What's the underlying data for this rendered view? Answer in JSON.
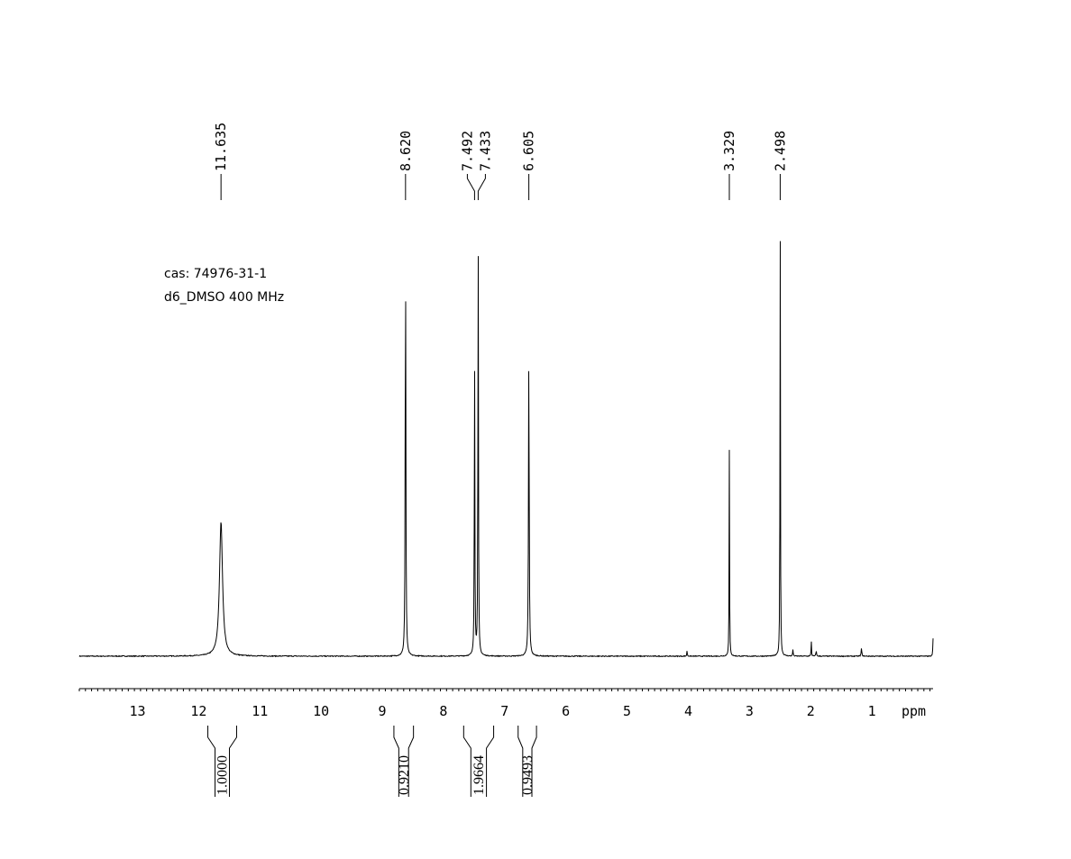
{
  "sample": {
    "cas_line": "cas: 74976-31-1",
    "solvent_line": "d6_DMSO 400 MHz"
  },
  "chart_data": {
    "type": "line",
    "title": "",
    "xlabel": "ppm",
    "xlim": [
      13.95,
      0.0
    ],
    "x_reversed": true,
    "major_ticks": [
      13,
      12,
      11,
      10,
      9,
      8,
      7,
      6,
      5,
      4,
      3,
      2,
      1
    ],
    "minor_tick_step": 0.1,
    "ylim": [
      0,
      1.0
    ],
    "baseline": 0.0,
    "peaks": [
      {
        "ppm": 11.635,
        "height": 0.3,
        "width": 0.06
      },
      {
        "ppm": 8.62,
        "height": 0.93,
        "width": 0.012
      },
      {
        "ppm": 7.492,
        "height": 0.68,
        "width": 0.01
      },
      {
        "ppm": 7.433,
        "height": 0.95,
        "width": 0.01
      },
      {
        "ppm": 6.605,
        "height": 0.68,
        "width": 0.013
      },
      {
        "ppm": 3.329,
        "height": 0.46,
        "width": 0.008
      },
      {
        "ppm": 2.498,
        "height": 1.0,
        "width": 0.008
      },
      {
        "ppm": 4.02,
        "height": 0.012,
        "width": 0.01
      },
      {
        "ppm": 2.29,
        "height": 0.015,
        "width": 0.01
      },
      {
        "ppm": 1.99,
        "height": 0.036,
        "width": 0.008
      },
      {
        "ppm": 1.91,
        "height": 0.014,
        "width": 0.01
      },
      {
        "ppm": 1.17,
        "height": 0.018,
        "width": 0.012
      },
      {
        "ppm": 0.0,
        "height": 0.04,
        "width": 0.01
      }
    ],
    "peak_labels": [
      "11.635",
      "8.620",
      "7.492",
      "7.433",
      "6.605",
      "3.329",
      "2.498"
    ],
    "peak_label_positions_ppm": [
      11.635,
      8.62,
      7.492,
      7.433,
      6.605,
      3.329,
      2.498
    ],
    "integrals": [
      {
        "from": 11.85,
        "to": 11.38,
        "value": "1.0000"
      },
      {
        "from": 8.81,
        "to": 8.49,
        "value": "0.9210"
      },
      {
        "from": 7.67,
        "to": 7.18,
        "value": "1.9664"
      },
      {
        "from": 6.78,
        "to": 6.48,
        "value": "0.9493"
      }
    ]
  }
}
